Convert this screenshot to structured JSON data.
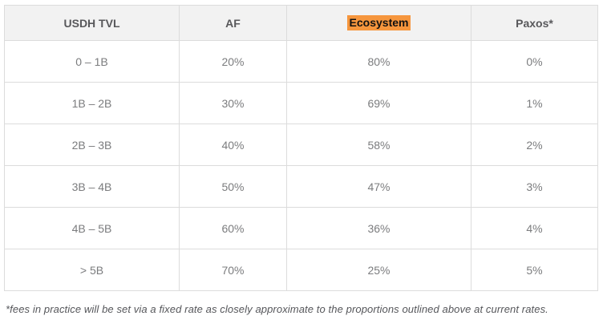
{
  "table": {
    "columns": [
      {
        "label": "USDH TVL",
        "highlight": false
      },
      {
        "label": "AF",
        "highlight": false
      },
      {
        "label": "Ecosystem",
        "highlight": true
      },
      {
        "label": "Paxos*",
        "highlight": false
      }
    ],
    "rows": [
      [
        "0 – 1B",
        "20%",
        "80%",
        "0%"
      ],
      [
        "1B – 2B",
        "30%",
        "69%",
        "1%"
      ],
      [
        "2B – 3B",
        "40%",
        "58%",
        "2%"
      ],
      [
        "3B – 4B",
        "50%",
        "47%",
        "3%"
      ],
      [
        "4B – 5B",
        "60%",
        "36%",
        "4%"
      ],
      [
        "> 5B",
        "70%",
        "25%",
        "5%"
      ]
    ]
  },
  "footnote": "*fees in practice will be set via a fixed rate as closely approximate to the proportions outlined above at current rates.",
  "colors": {
    "header_bg": "#f2f2f2",
    "border": "#dcdcdc",
    "highlight": "#f6963d",
    "header_text": "#58585b",
    "cell_text": "#7b7c7e",
    "footnote_text": "#55565a",
    "page_bg": "#ffffff"
  },
  "chart_data": {
    "type": "table",
    "title": "",
    "columns": [
      "USDH TVL",
      "AF",
      "Ecosystem",
      "Paxos*"
    ],
    "rows": [
      [
        "0 – 1B",
        "20%",
        "80%",
        "0%"
      ],
      [
        "1B – 2B",
        "30%",
        "69%",
        "1%"
      ],
      [
        "2B – 3B",
        "40%",
        "58%",
        "2%"
      ],
      [
        "3B – 4B",
        "50%",
        "47%",
        "3%"
      ],
      [
        "4B – 5B",
        "60%",
        "36%",
        "4%"
      ],
      [
        "> 5B",
        "70%",
        "25%",
        "5%"
      ]
    ]
  }
}
